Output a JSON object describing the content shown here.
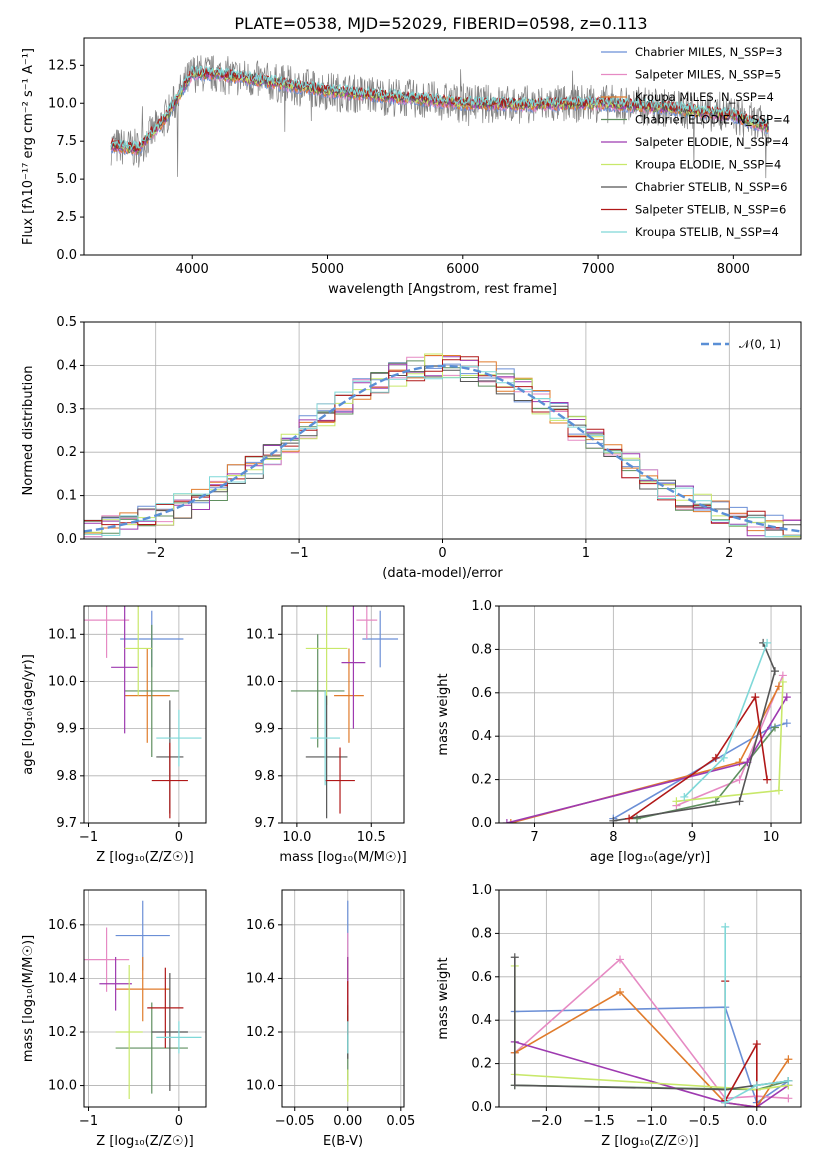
{
  "figure": {
    "title": "PLATE=0538, MJD=52029, FIBERID=0598, z=0.113",
    "series_colors": [
      "#6b8fd6",
      "#e68ac3",
      "#e07b2b",
      "#5f8f5f",
      "#9e3ab0",
      "#c8e86a",
      "#555555",
      "#b01818",
      "#7fd8d8"
    ]
  },
  "chart_data": [
    {
      "type": "line",
      "panel": "spectrum",
      "xlabel": "wavelength [Angstrom, rest frame]",
      "ylabel": "Flux [fλ10⁻¹⁷ erg cm⁻² s⁻¹ A⁻¹]",
      "xlim": [
        3200,
        8500
      ],
      "ylim": [
        0,
        14.3
      ],
      "xticks": [
        "4000",
        "5000",
        "6000",
        "7000",
        "8000"
      ],
      "yticks": [
        "0.0",
        "2.5",
        "5.0",
        "7.5",
        "10.0",
        "12.5"
      ],
      "legend_position": "right",
      "legend": [
        "Chabrier MILES, N_SSP=3",
        "Salpeter MILES, N_SSP=5",
        "Kroupa MILES, N_SSP=4",
        "Chabrier ELODIE, N_SSP=4",
        "Salpeter ELODIE, N_SSP=4",
        "Kroupa ELODIE, N_SSP=4",
        "Chabrier STELIB, N_SSP=6",
        "Salpeter STELIB, N_SSP=6",
        "Kroupa STELIB, N_SSP=4"
      ],
      "x_range_data": [
        3400,
        8260
      ],
      "continuum": {
        "x": [
          3400,
          3600,
          3800,
          4000,
          4200,
          4500,
          5000,
          5500,
          6000,
          6500,
          7000,
          7500,
          8000,
          8260
        ],
        "y": [
          7.2,
          7.0,
          9.0,
          12.0,
          11.9,
          11.5,
          10.8,
          10.4,
          10.0,
          9.9,
          10.0,
          9.7,
          9.2,
          8.4
        ]
      }
    },
    {
      "type": "histogram",
      "panel": "residuals",
      "xlabel": "(data-model)/error",
      "ylabel": "Normed distribution",
      "xlim": [
        -2.5,
        2.5
      ],
      "ylim": [
        0,
        0.5
      ],
      "xticks": [
        "−2",
        "−1",
        "0",
        "1",
        "2"
      ],
      "yticks": [
        "0.0",
        "0.1",
        "0.2",
        "0.3",
        "0.4",
        "0.5"
      ],
      "bin_width": 0.125,
      "reference_curve": {
        "name": "𝒩(0, 1)",
        "mean": 0,
        "sigma": 1
      },
      "legend_position": "upper right"
    },
    {
      "type": "scatter",
      "panel": "age-vs-Z",
      "xlabel": "Z [log₁₀(Z/Z☉)]",
      "ylabel": "age  [log₁₀(age/yr)]",
      "xlim": [
        -1.05,
        0.3
      ],
      "ylim": [
        9.7,
        10.16
      ],
      "xticks": [
        "−1",
        "0"
      ],
      "yticks": [
        "9.7",
        "9.8",
        "9.9",
        "10.0",
        "10.1"
      ],
      "points": [
        {
          "x": -0.3,
          "y": 10.09,
          "xerr": 0.35,
          "yerr": 0.06
        },
        {
          "x": -0.8,
          "y": 10.13,
          "xerr": 0.25,
          "yerr": 0.08
        },
        {
          "x": -0.35,
          "y": 9.97,
          "xerr": 0.25,
          "yerr": 0.1
        },
        {
          "x": -0.3,
          "y": 9.98,
          "xerr": 0.3,
          "yerr": 0.14
        },
        {
          "x": -0.6,
          "y": 10.03,
          "xerr": 0.15,
          "yerr": 0.14
        },
        {
          "x": -0.45,
          "y": 10.07,
          "xerr": 0.15,
          "yerr": 0.1
        },
        {
          "x": -0.1,
          "y": 9.84,
          "xerr": 0.15,
          "yerr": 0.12
        },
        {
          "x": -0.1,
          "y": 9.79,
          "xerr": 0.2,
          "yerr": 0.08
        },
        {
          "x": 0.0,
          "y": 9.88,
          "xerr": 0.25,
          "yerr": 0.06
        }
      ]
    },
    {
      "type": "scatter",
      "panel": "age-vs-mass",
      "xlabel": "mass [log₁₀(M/M☉)]",
      "ylabel": "",
      "xlim": [
        9.9,
        10.72
      ],
      "ylim": [
        9.7,
        10.16
      ],
      "xticks": [
        "10.0",
        "10.5"
      ],
      "yticks": [
        "9.7",
        "9.8",
        "9.9",
        "10.0",
        "10.1"
      ],
      "points": [
        {
          "x": 10.56,
          "y": 10.09,
          "xerr": 0.12,
          "yerr": 0.06
        },
        {
          "x": 10.47,
          "y": 10.13,
          "xerr": 0.07,
          "yerr": 0.04
        },
        {
          "x": 10.35,
          "y": 9.97,
          "xerr": 0.1,
          "yerr": 0.1
        },
        {
          "x": 10.14,
          "y": 9.98,
          "xerr": 0.18,
          "yerr": 0.12
        },
        {
          "x": 10.38,
          "y": 10.04,
          "xerr": 0.08,
          "yerr": 0.14
        },
        {
          "x": 10.2,
          "y": 10.07,
          "xerr": 0.14,
          "yerr": 0.12
        },
        {
          "x": 10.2,
          "y": 9.84,
          "xerr": 0.14,
          "yerr": 0.13
        },
        {
          "x": 10.29,
          "y": 9.79,
          "xerr": 0.1,
          "yerr": 0.07
        },
        {
          "x": 10.19,
          "y": 9.88,
          "xerr": 0.1,
          "yerr": 0.1
        }
      ]
    },
    {
      "type": "line",
      "panel": "weight-vs-age",
      "xlabel": "age  [log₁₀(age/yr)]",
      "ylabel": "mass weight",
      "xlim": [
        6.55,
        10.38
      ],
      "ylim": [
        0,
        1.0
      ],
      "xticks": [
        "7",
        "8",
        "9",
        "10"
      ],
      "yticks": [
        "0.0",
        "0.2",
        "0.4",
        "0.6",
        "0.8",
        "1.0"
      ],
      "series": [
        {
          "x": [
            8.0,
            10.0,
            10.2
          ],
          "y": [
            0.02,
            0.44,
            0.46
          ]
        },
        {
          "x": [
            8.8,
            9.6,
            10.15
          ],
          "y": [
            0.08,
            0.2,
            0.68
          ]
        },
        {
          "x": [
            6.7,
            9.6,
            10.1
          ],
          "y": [
            0.0,
            0.28,
            0.63
          ]
        },
        {
          "x": [
            8.3,
            9.3,
            10.05
          ],
          "y": [
            0.02,
            0.1,
            0.44
          ]
        },
        {
          "x": [
            6.65,
            9.7,
            10.2
          ],
          "y": [
            0.0,
            0.28,
            0.58
          ]
        },
        {
          "x": [
            8.8,
            10.1,
            10.15
          ],
          "y": [
            0.1,
            0.15,
            0.65
          ]
        },
        {
          "x": [
            8.0,
            9.6,
            10.05,
            9.9
          ],
          "y": [
            0.01,
            0.1,
            0.7,
            0.83
          ]
        },
        {
          "x": [
            8.2,
            9.3,
            9.8,
            9.95
          ],
          "y": [
            0.02,
            0.3,
            0.58,
            0.2
          ]
        },
        {
          "x": [
            8.9,
            9.4,
            9.95
          ],
          "y": [
            0.12,
            0.3,
            0.83
          ]
        }
      ]
    },
    {
      "type": "scatter",
      "panel": "mass-vs-Z",
      "xlabel": "Z [log₁₀(Z/Z☉)]",
      "ylabel": "mass [log₁₀(M/M☉)]",
      "xlim": [
        -1.05,
        0.3
      ],
      "ylim": [
        9.92,
        10.73
      ],
      "xticks": [
        "−1",
        "0"
      ],
      "yticks": [
        "10.0",
        "10.2",
        "10.4",
        "10.6"
      ],
      "points": [
        {
          "x": -0.4,
          "y": 10.56,
          "xerr": 0.3,
          "yerr": 0.13
        },
        {
          "x": -0.8,
          "y": 10.47,
          "xerr": 0.25,
          "yerr": 0.12
        },
        {
          "x": -0.4,
          "y": 10.36,
          "xerr": 0.3,
          "yerr": 0.12
        },
        {
          "x": -0.3,
          "y": 10.14,
          "xerr": 0.4,
          "yerr": 0.17
        },
        {
          "x": -0.7,
          "y": 10.38,
          "xerr": 0.18,
          "yerr": 0.1
        },
        {
          "x": -0.55,
          "y": 10.2,
          "xerr": 0.15,
          "yerr": 0.25
        },
        {
          "x": -0.1,
          "y": 10.2,
          "xerr": 0.2,
          "yerr": 0.22
        },
        {
          "x": -0.15,
          "y": 10.29,
          "xerr": 0.2,
          "yerr": 0.15
        },
        {
          "x": 0.0,
          "y": 10.18,
          "xerr": 0.25,
          "yerr": 0.06
        }
      ]
    },
    {
      "type": "scatter",
      "panel": "mass-vs-EBV",
      "xlabel": "E(B-V)",
      "ylabel": "",
      "xlim": [
        -0.062,
        0.053
      ],
      "ylim": [
        9.92,
        10.73
      ],
      "xticks": [
        "−0.05",
        "0.00",
        "0.05"
      ],
      "yticks": [
        "10.0",
        "10.2",
        "10.4",
        "10.6"
      ],
      "points": [
        {
          "x": 0.0,
          "y": 10.56,
          "xerr": 0,
          "yerr": 0.13
        },
        {
          "x": 0.0,
          "y": 10.47,
          "xerr": 0,
          "yerr": 0.1
        },
        {
          "x": 0.0,
          "y": 10.36,
          "xerr": 0,
          "yerr": 0.12
        },
        {
          "x": 0.0,
          "y": 10.14,
          "xerr": 0,
          "yerr": 0.12
        },
        {
          "x": 0.0,
          "y": 10.38,
          "xerr": 0,
          "yerr": 0.1
        },
        {
          "x": 0.0,
          "y": 10.0,
          "xerr": 0,
          "yerr": 0.06
        },
        {
          "x": 0.0,
          "y": 10.2,
          "xerr": 0,
          "yerr": 0.1
        },
        {
          "x": 0.0,
          "y": 10.29,
          "xerr": 0,
          "yerr": 0.1
        },
        {
          "x": 0.0,
          "y": 10.18,
          "xerr": 0,
          "yerr": 0.06
        }
      ]
    },
    {
      "type": "line",
      "panel": "weight-vs-Z",
      "xlabel": "Z [log₁₀(Z/Z☉)]",
      "ylabel": "mass weight",
      "xlim": [
        -2.45,
        0.42
      ],
      "ylim": [
        0,
        1.0
      ],
      "xticks": [
        "−2.0",
        "−1.5",
        "−1.0",
        "−0.5",
        "0.0"
      ],
      "yticks": [
        "0.0",
        "0.2",
        "0.4",
        "0.6",
        "0.8",
        "1.0"
      ],
      "series": [
        {
          "x": [
            -2.3,
            -0.3,
            0.0,
            0.3
          ],
          "y": [
            0.44,
            0.46,
            0.02,
            0.12
          ]
        },
        {
          "x": [
            -2.3,
            -1.3,
            -0.3,
            0.0,
            0.3
          ],
          "y": [
            0.25,
            0.68,
            0.04,
            0.05,
            0.04
          ]
        },
        {
          "x": [
            -2.3,
            -1.3,
            -0.3,
            0.0,
            0.3
          ],
          "y": [
            0.25,
            0.53,
            0.02,
            0.0,
            0.22
          ]
        },
        {
          "x": [
            -2.3,
            0.0,
            0.3
          ],
          "y": [
            0.1,
            0.08,
            0.12
          ]
        },
        {
          "x": [
            -2.3,
            -0.3,
            0.0,
            0.3
          ],
          "y": [
            0.3,
            0.02,
            0.0,
            0.1
          ]
        },
        {
          "x": [
            -2.3,
            -2.3,
            0.0,
            0.3
          ],
          "y": [
            0.65,
            0.15,
            0.08,
            0.1
          ]
        },
        {
          "x": [
            -2.3,
            -2.3,
            -0.3,
            0.3
          ],
          "y": [
            0.69,
            0.1,
            0.08,
            0.12
          ]
        },
        {
          "x": [
            -0.3,
            -0.3,
            0.0,
            0.0
          ],
          "y": [
            0.58,
            0.03,
            0.29,
            0.0
          ]
        },
        {
          "x": [
            -0.3,
            -0.3,
            0.0,
            0.3
          ],
          "y": [
            0.83,
            0.02,
            0.1,
            0.12
          ]
        }
      ]
    }
  ]
}
